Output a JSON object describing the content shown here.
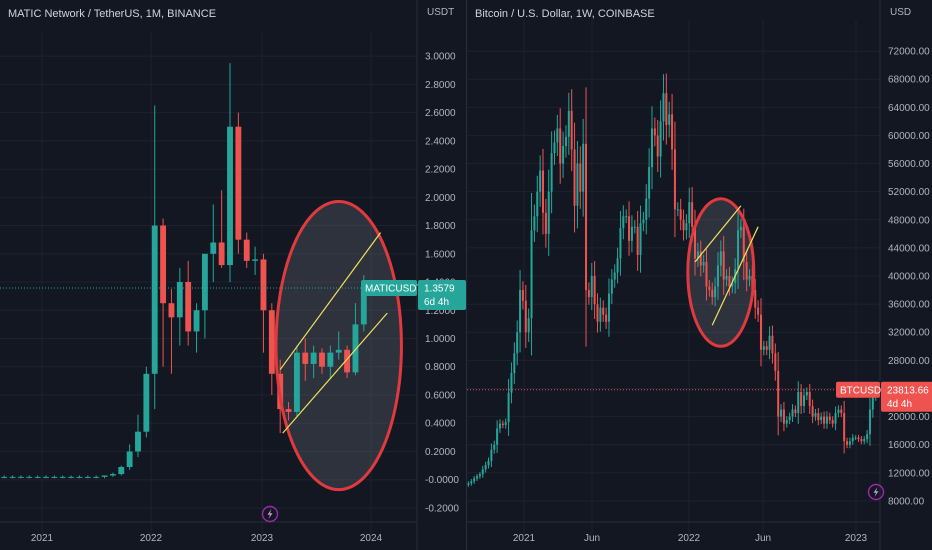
{
  "colors": {
    "up": "#26a69a",
    "down": "#ef5350",
    "bg": "#131722",
    "grid": "#1e222d",
    "circle": "#e03a3e",
    "line": "#f2e35a",
    "axis": "#b2b5be"
  },
  "left": {
    "title": "MATIC Network / TetherUS, 1M, BINANCE",
    "currency": "USDT",
    "price_tag": {
      "symbol": "MATICUSDT",
      "price": "1.3579",
      "countdown": "6d 4h",
      "value": 1.3579
    },
    "flash_icon": "lightning-bolt-icon",
    "chart_data": {
      "type": "candlestick",
      "title": "MATIC Network / TetherUS, 1M, BINANCE",
      "ylabel": "USDT",
      "ylim": [
        -0.25,
        3.1
      ],
      "y_ticks": [
        "3.0000",
        "2.8000",
        "2.6000",
        "2.4000",
        "2.2000",
        "2.0000",
        "1.8000",
        "1.6000",
        "1.4000",
        "1.2000",
        "1.0000",
        "0.8000",
        "0.6000",
        "0.4000",
        "0.2000",
        "-0.0000",
        "-0.2000"
      ],
      "x_labels": [
        "2021",
        "2022",
        "2023",
        "2024"
      ],
      "candles": [
        {
          "o": 0.02,
          "h": 0.03,
          "l": 0.01,
          "c": 0.02
        },
        {
          "o": 0.02,
          "h": 0.03,
          "l": 0.01,
          "c": 0.02
        },
        {
          "o": 0.02,
          "h": 0.03,
          "l": 0.01,
          "c": 0.02
        },
        {
          "o": 0.02,
          "h": 0.03,
          "l": 0.01,
          "c": 0.02
        },
        {
          "o": 0.02,
          "h": 0.03,
          "l": 0.01,
          "c": 0.02
        },
        {
          "o": 0.02,
          "h": 0.03,
          "l": 0.01,
          "c": 0.02
        },
        {
          "o": 0.02,
          "h": 0.03,
          "l": 0.01,
          "c": 0.02
        },
        {
          "o": 0.02,
          "h": 0.03,
          "l": 0.01,
          "c": 0.02
        },
        {
          "o": 0.02,
          "h": 0.03,
          "l": 0.01,
          "c": 0.02
        },
        {
          "o": 0.02,
          "h": 0.03,
          "l": 0.01,
          "c": 0.02
        },
        {
          "o": 0.02,
          "h": 0.03,
          "l": 0.01,
          "c": 0.02
        },
        {
          "o": 0.02,
          "h": 0.03,
          "l": 0.01,
          "c": 0.02
        },
        {
          "o": 0.02,
          "h": 0.03,
          "l": 0.01,
          "c": 0.03
        },
        {
          "o": 0.03,
          "h": 0.05,
          "l": 0.02,
          "c": 0.04
        },
        {
          "o": 0.04,
          "h": 0.1,
          "l": 0.03,
          "c": 0.09
        },
        {
          "o": 0.09,
          "h": 0.25,
          "l": 0.07,
          "c": 0.2
        },
        {
          "o": 0.2,
          "h": 0.46,
          "l": 0.16,
          "c0": 0,
          "c": 0.34
        },
        {
          "o": 0.34,
          "h": 0.8,
          "l": 0.3,
          "c": 0.75
        },
        {
          "o": 0.75,
          "h": 2.65,
          "l": 0.5,
          "c": 1.8
        },
        {
          "o": 1.8,
          "h": 1.85,
          "l": 0.8,
          "c": 1.25
        },
        {
          "o": 1.25,
          "h": 1.35,
          "l": 0.75,
          "c": 1.15
        },
        {
          "o": 1.15,
          "h": 1.5,
          "l": 0.95,
          "c": 1.4
        },
        {
          "o": 1.4,
          "h": 1.55,
          "l": 0.95,
          "c": 1.05
        },
        {
          "o": 1.05,
          "h": 1.25,
          "l": 0.9,
          "c": 1.2
        },
        {
          "o": 1.2,
          "h": 1.3,
          "l": 1.0,
          "c": 1.6
        },
        {
          "o": 1.6,
          "h": 1.95,
          "l": 1.4,
          "c": 1.68
        },
        {
          "o": 1.68,
          "h": 2.05,
          "l": 1.5,
          "c": 1.52
        },
        {
          "o": 1.52,
          "h": 2.95,
          "l": 1.4,
          "c": 2.5
        },
        {
          "o": 2.5,
          "h": 2.6,
          "l": 1.6,
          "c": 1.7
        },
        {
          "o": 1.7,
          "h": 1.75,
          "l": 1.5,
          "c": 1.55
        },
        {
          "o": 1.55,
          "h": 1.65,
          "l": 1.45,
          "c": 1.56
        },
        {
          "o": 1.56,
          "h": 1.6,
          "l": 0.9,
          "c": 1.2
        },
        {
          "o": 1.2,
          "h": 1.25,
          "l": 0.6,
          "c": 0.75
        },
        {
          "o": 0.75,
          "h": 0.85,
          "l": 0.33,
          "c": 0.5
        },
        {
          "o": 0.5,
          "h": 0.55,
          "l": 0.42,
          "c": 0.48
        },
        {
          "o": 0.48,
          "h": 0.95,
          "l": 0.45,
          "c": 0.9
        },
        {
          "o": 0.9,
          "h": 1.0,
          "l": 0.7,
          "c": 0.82
        },
        {
          "o": 0.82,
          "h": 0.95,
          "l": 0.72,
          "c": 0.9
        },
        {
          "o": 0.9,
          "h": 0.93,
          "l": 0.75,
          "c": 0.8
        },
        {
          "o": 0.8,
          "h": 0.95,
          "l": 0.72,
          "c": 0.9
        },
        {
          "o": 0.9,
          "h": 1.05,
          "l": 0.85,
          "c": 0.92
        },
        {
          "o": 0.92,
          "h": 0.95,
          "l": 0.72,
          "c": 0.76
        },
        {
          "o": 0.76,
          "h": 1.25,
          "l": 0.74,
          "c": 1.1
        },
        {
          "o": 1.1,
          "h": 1.45,
          "l": 1.05,
          "c": 1.3579
        }
      ],
      "trend_lines": [
        {
          "x1": 33.5,
          "y1": 0.78,
          "x2": 45.5,
          "y2": 1.75
        },
        {
          "x1": 33.8,
          "y1": 0.33,
          "x2": 46.3,
          "y2": 1.18
        }
      ],
      "circle": {
        "cx": 40.5,
        "cy": 0.95,
        "rx": 7.5,
        "ry": 1.02
      }
    }
  },
  "right": {
    "title": "Bitcoin / U.S. Dollar, 1W, COINBASE",
    "currency": "USD",
    "price_tag": {
      "symbol": "BTCUSD",
      "price": "23813.66",
      "countdown": "4d 4h",
      "value": 23813.66
    },
    "flash_icon": "lightning-bolt-icon",
    "chart_data": {
      "type": "candlestick",
      "title": "Bitcoin / U.S. Dollar, 1W, COINBASE",
      "ylabel": "USD",
      "ylim": [
        6000,
        75000
      ],
      "y_ticks": [
        "72000.00",
        "68000.00",
        "64000.00",
        "60000.00",
        "56000.00",
        "52000.00",
        "48000.00",
        "44000.00",
        "40000.00",
        "36000.00",
        "32000.00",
        "28000.00",
        "24000.00",
        "20000.00",
        "16000.00",
        "12000.00",
        "8000.00"
      ],
      "x_labels": [
        "2021",
        "Jun",
        "2022",
        "Jun",
        "2023"
      ],
      "closes": [
        10500,
        10800,
        11200,
        11500,
        11800,
        12500,
        13100,
        13700,
        15300,
        16000,
        18300,
        19000,
        18800,
        19200,
        23400,
        26200,
        29000,
        32000,
        38000,
        36500,
        32000,
        34000,
        46500,
        48500,
        52000,
        55000,
        49000,
        46000,
        52000,
        57500,
        59000,
        61000,
        56000,
        58500,
        59800,
        63500,
        58000,
        50000,
        56000,
        52000,
        58800,
        38000,
        37000,
        40000,
        36000,
        33500,
        35500,
        34500,
        33500,
        37500,
        39500,
        40500,
        42500,
        46800,
        48500,
        48500,
        45000,
        47000,
        47000,
        43000,
        47500,
        48000,
        51000,
        55500,
        61000,
        60000,
        57000,
        62000,
        66000,
        61500,
        63000,
        58000,
        49500,
        49500,
        48000,
        46500,
        47500,
        50500,
        47000,
        42500,
        43500,
        41500,
        42000,
        38500,
        38000,
        37000,
        38500,
        41500,
        43500,
        39500,
        40000,
        38500,
        39000,
        41000,
        46500,
        47000,
        42000,
        39500,
        40000,
        38000,
        35500,
        34500,
        29500,
        30000,
        29500,
        31500,
        29000,
        26500,
        20000,
        21000,
        19000,
        19500,
        20000,
        21000,
        20500,
        23500,
        21500,
        23000,
        23500,
        21500,
        20000,
        20500,
        19500,
        20000,
        19000,
        20000,
        19500,
        19000,
        20500,
        21000,
        20500,
        16500,
        16000,
        16500,
        17000,
        17000,
        16800,
        16500,
        16800,
        17500,
        21000,
        23000,
        23800,
        23813.66
      ],
      "trend_lines": [
        {
          "x1": 79.5,
          "y1": 42000,
          "x2": 95.5,
          "y2": 50000
        },
        {
          "x1": 85.5,
          "y1": 33000,
          "x2": 101.5,
          "y2": 47000
        }
      ],
      "circle": {
        "cx": 88.5,
        "cy": 40500,
        "rx": 11.5,
        "ry": 10500
      }
    }
  }
}
